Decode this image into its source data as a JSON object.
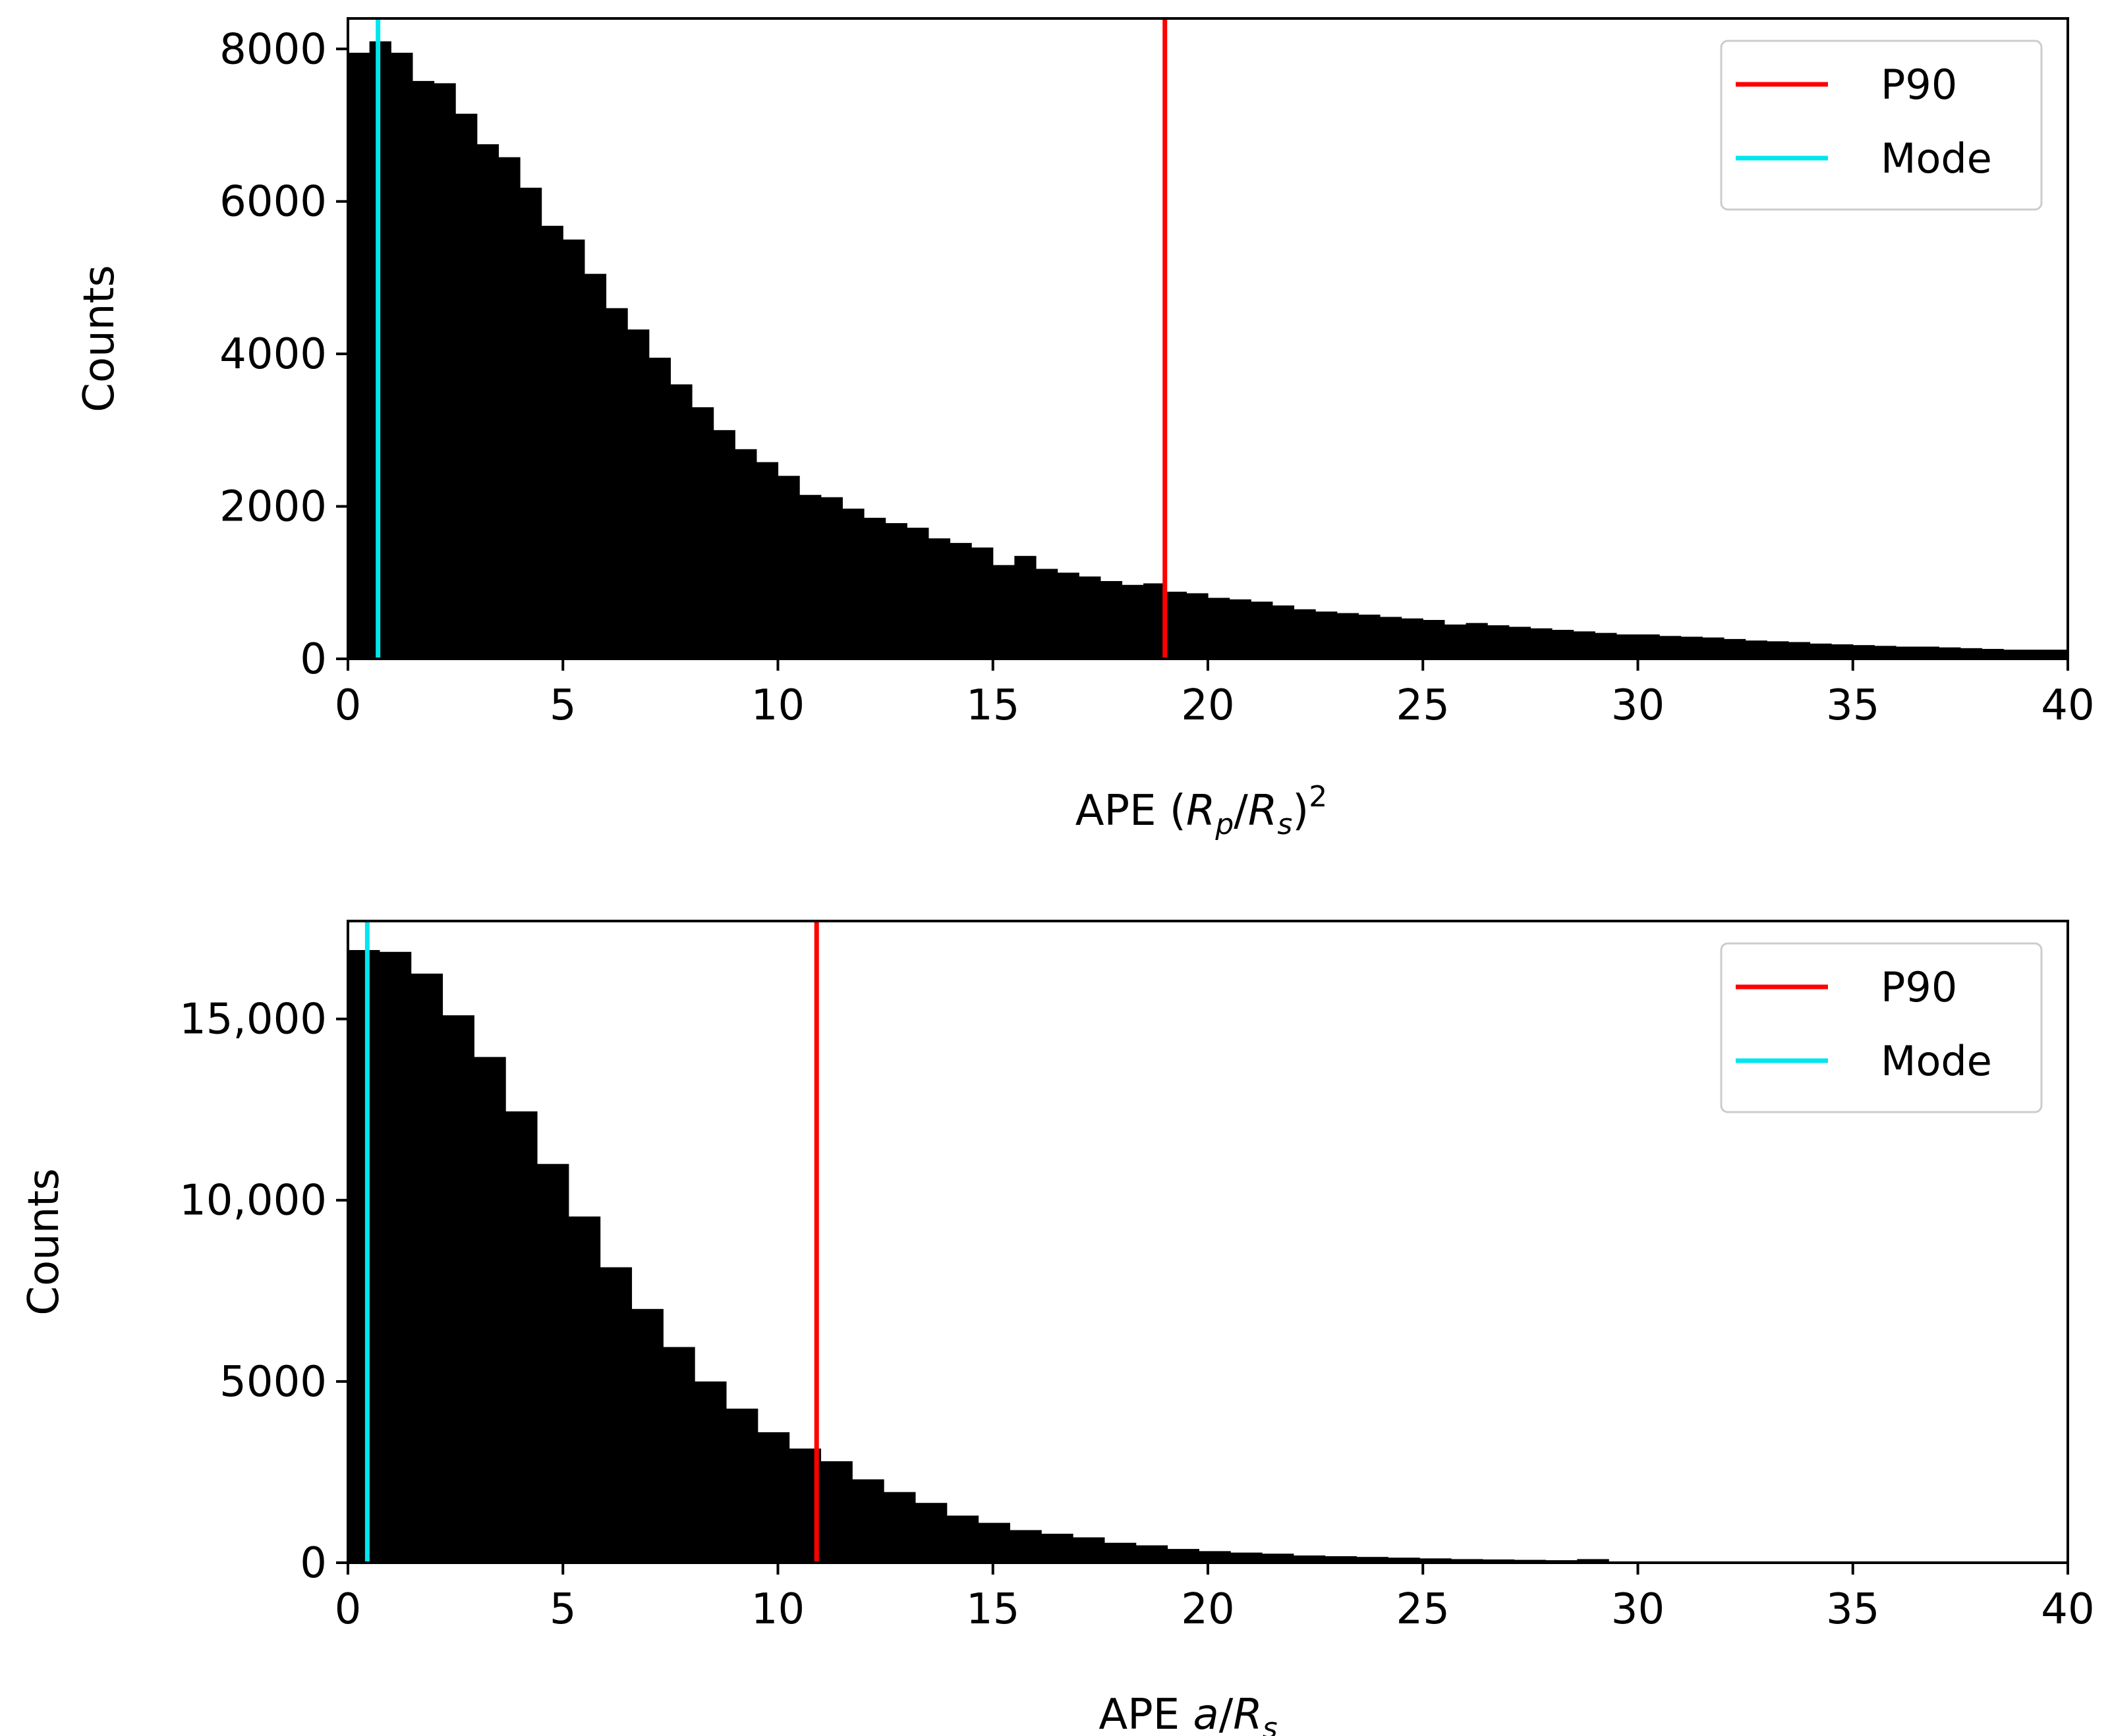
{
  "colors": {
    "bars": "#000000",
    "p90_line": "#ff0000",
    "mode_line": "#00e5ee",
    "background": "#ffffff"
  },
  "chart_data": [
    {
      "type": "bar",
      "subtype": "histogram",
      "ylabel": "Counts",
      "xlabel": {
        "prefix": "APE (",
        "r1": "R",
        "r1_sub": "p",
        "slash": "/",
        "r2": "R",
        "r2_sub": "s",
        "suffix": ")",
        "sup": "2"
      },
      "xlim": [
        0,
        40
      ],
      "ylim": [
        0,
        8400
      ],
      "xticks": [
        {
          "value": 0,
          "label": "0"
        },
        {
          "value": 5,
          "label": "5"
        },
        {
          "value": 10,
          "label": "10"
        },
        {
          "value": 15,
          "label": "15"
        },
        {
          "value": 20,
          "label": "20"
        },
        {
          "value": 25,
          "label": "25"
        },
        {
          "value": 30,
          "label": "30"
        },
        {
          "value": 35,
          "label": "35"
        },
        {
          "value": 40,
          "label": "40"
        }
      ],
      "yticks": [
        {
          "value": 0,
          "label": "0"
        },
        {
          "value": 2000,
          "label": "2000"
        },
        {
          "value": 4000,
          "label": "4000"
        },
        {
          "value": 6000,
          "label": "6000"
        },
        {
          "value": 8000,
          "label": "8000"
        }
      ],
      "bin_start": 0,
      "bin_width": 0.5,
      "values": [
        7950,
        8100,
        7950,
        7580,
        7550,
        7150,
        6750,
        6580,
        6180,
        5680,
        5500,
        5050,
        4600,
        4320,
        3950,
        3600,
        3300,
        3000,
        2750,
        2580,
        2400,
        2150,
        2120,
        1970,
        1850,
        1780,
        1720,
        1580,
        1520,
        1460,
        1230,
        1350,
        1180,
        1130,
        1080,
        1020,
        970,
        990,
        880,
        860,
        800,
        780,
        750,
        700,
        650,
        620,
        600,
        580,
        550,
        530,
        510,
        450,
        470,
        440,
        420,
        400,
        380,
        360,
        340,
        320,
        320,
        300,
        290,
        280,
        260,
        240,
        230,
        220,
        200,
        190,
        180,
        170,
        160,
        160,
        150,
        140,
        130,
        120,
        120,
        120
      ],
      "vlines": [
        {
          "name": "P90",
          "x": 19.0,
          "color_key": "p90_line"
        },
        {
          "name": "Mode",
          "x": 0.7,
          "color_key": "mode_line"
        }
      ],
      "legend": {
        "placement": "upper right",
        "entries": [
          "P90",
          "Mode"
        ]
      },
      "grid": false
    },
    {
      "type": "bar",
      "subtype": "histogram",
      "ylabel": "Counts",
      "xlabel": {
        "prefix": "APE ",
        "a": "a",
        "slash": "/",
        "r": "R",
        "r_sub": "s"
      },
      "xlim": [
        0,
        40
      ],
      "ylim": [
        0,
        17700
      ],
      "xticks": [
        {
          "value": 0,
          "label": "0"
        },
        {
          "value": 5,
          "label": "5"
        },
        {
          "value": 10,
          "label": "10"
        },
        {
          "value": 15,
          "label": "15"
        },
        {
          "value": 20,
          "label": "20"
        },
        {
          "value": 25,
          "label": "25"
        },
        {
          "value": 30,
          "label": "30"
        },
        {
          "value": 35,
          "label": "35"
        },
        {
          "value": 40,
          "label": "40"
        }
      ],
      "yticks": [
        {
          "value": 0,
          "label": "0"
        },
        {
          "value": 5000,
          "label": "5000"
        },
        {
          "value": 10000,
          "label": "10,000"
        },
        {
          "value": 15000,
          "label": "15,000"
        }
      ],
      "bin_start": 0,
      "bin_width": 0.733,
      "values": [
        16900,
        16850,
        16250,
        15100,
        13950,
        12450,
        11000,
        9550,
        8150,
        7000,
        5950,
        5000,
        4250,
        3600,
        3150,
        2800,
        2300,
        1950,
        1650,
        1300,
        1100,
        900,
        800,
        700,
        550,
        480,
        380,
        320,
        280,
        250,
        200,
        180,
        160,
        140,
        120,
        100,
        90,
        80,
        70,
        100
      ],
      "vlines": [
        {
          "name": "P90",
          "x": 10.9,
          "color_key": "p90_line"
        },
        {
          "name": "Mode",
          "x": 0.45,
          "color_key": "mode_line"
        }
      ],
      "legend": {
        "placement": "upper right",
        "entries": [
          "P90",
          "Mode"
        ]
      },
      "grid": false
    }
  ]
}
